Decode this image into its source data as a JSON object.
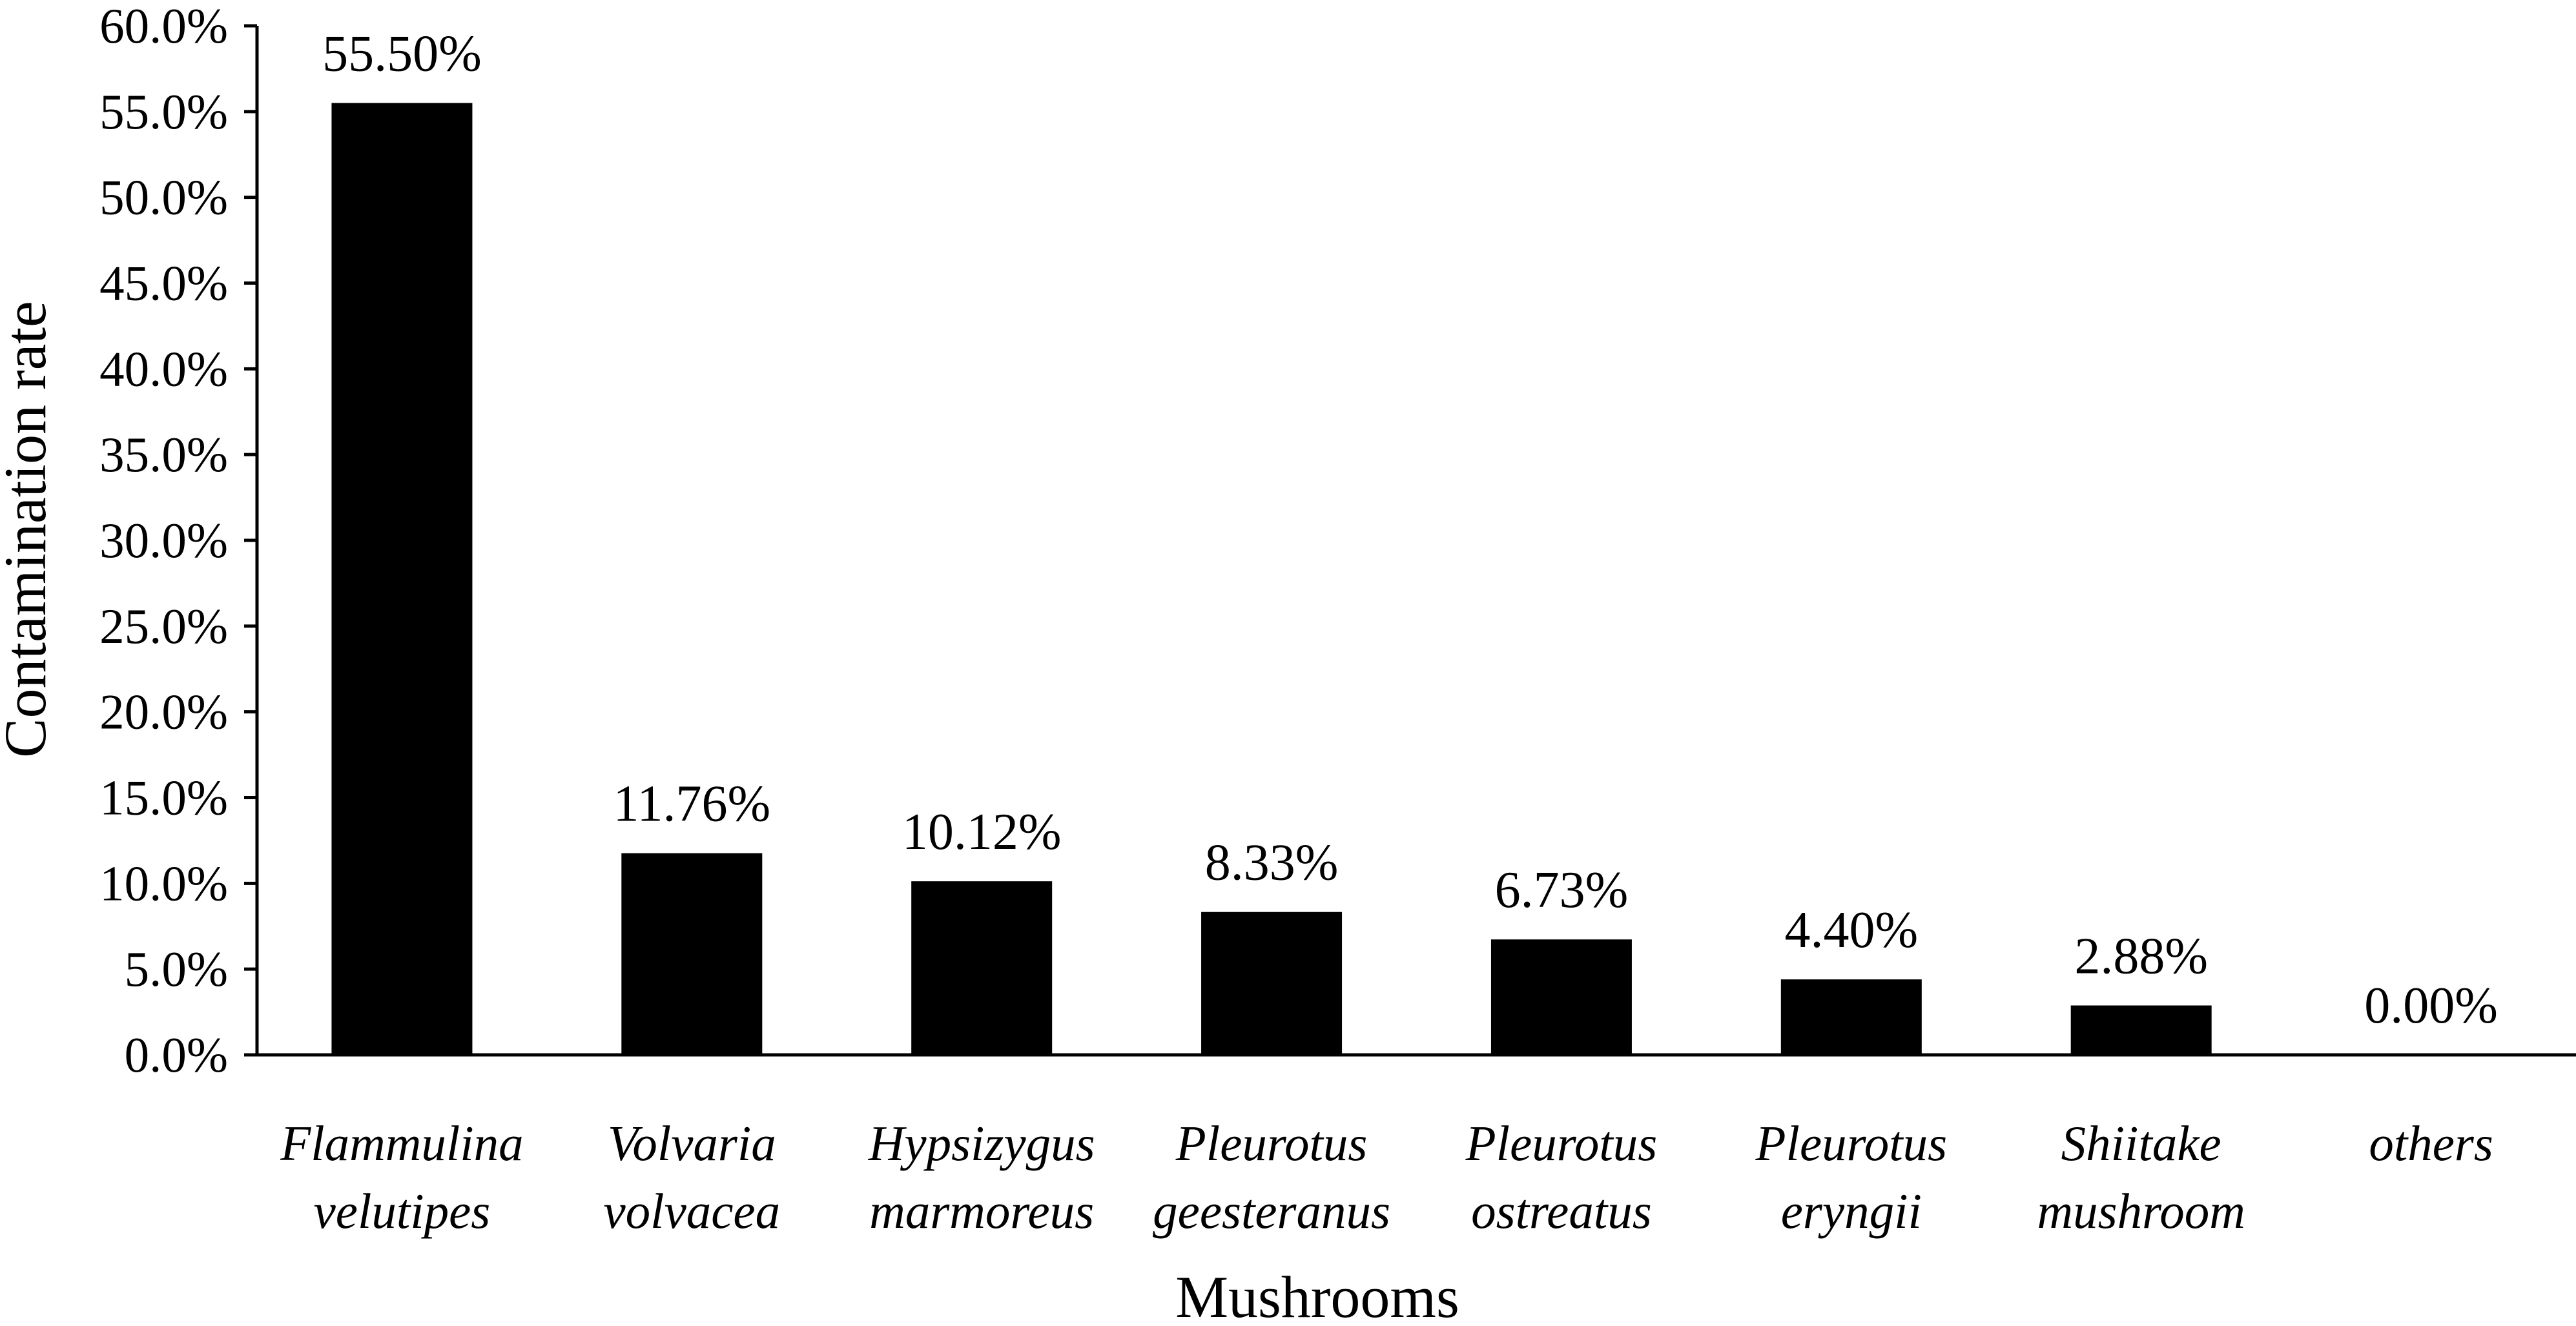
{
  "chart_data": {
    "type": "bar",
    "title": "",
    "xlabel": "Mushrooms",
    "ylabel": "Contamination  rate",
    "ylim": [
      0,
      60
    ],
    "y_ticks": [
      "0.0%",
      "5.0%",
      "10.0%",
      "15.0%",
      "20.0%",
      "25.0%",
      "30.0%",
      "35.0%",
      "40.0%",
      "45.0%",
      "50.0%",
      "55.0%",
      "60.0%"
    ],
    "categories": [
      [
        "Flammulina",
        "velutipes"
      ],
      [
        "Volvaria",
        "volvacea"
      ],
      [
        "Hypsizygus",
        "marmoreus"
      ],
      [
        "Pleurotus",
        "geesteranus"
      ],
      [
        "Pleurotus",
        "ostreatus"
      ],
      [
        "Pleurotus",
        "eryngii"
      ],
      [
        "Shiitake",
        "mushroom"
      ],
      [
        "others"
      ]
    ],
    "values": [
      55.5,
      11.76,
      10.12,
      8.33,
      6.73,
      4.4,
      2.88,
      0.0
    ],
    "data_labels": [
      "55.50%",
      "11.76%",
      "10.12%",
      "8.33%",
      "6.73%",
      "4.40%",
      "2.88%",
      "0.00%"
    ],
    "legend": "none",
    "grid": false,
    "bar_color": "#000000"
  }
}
